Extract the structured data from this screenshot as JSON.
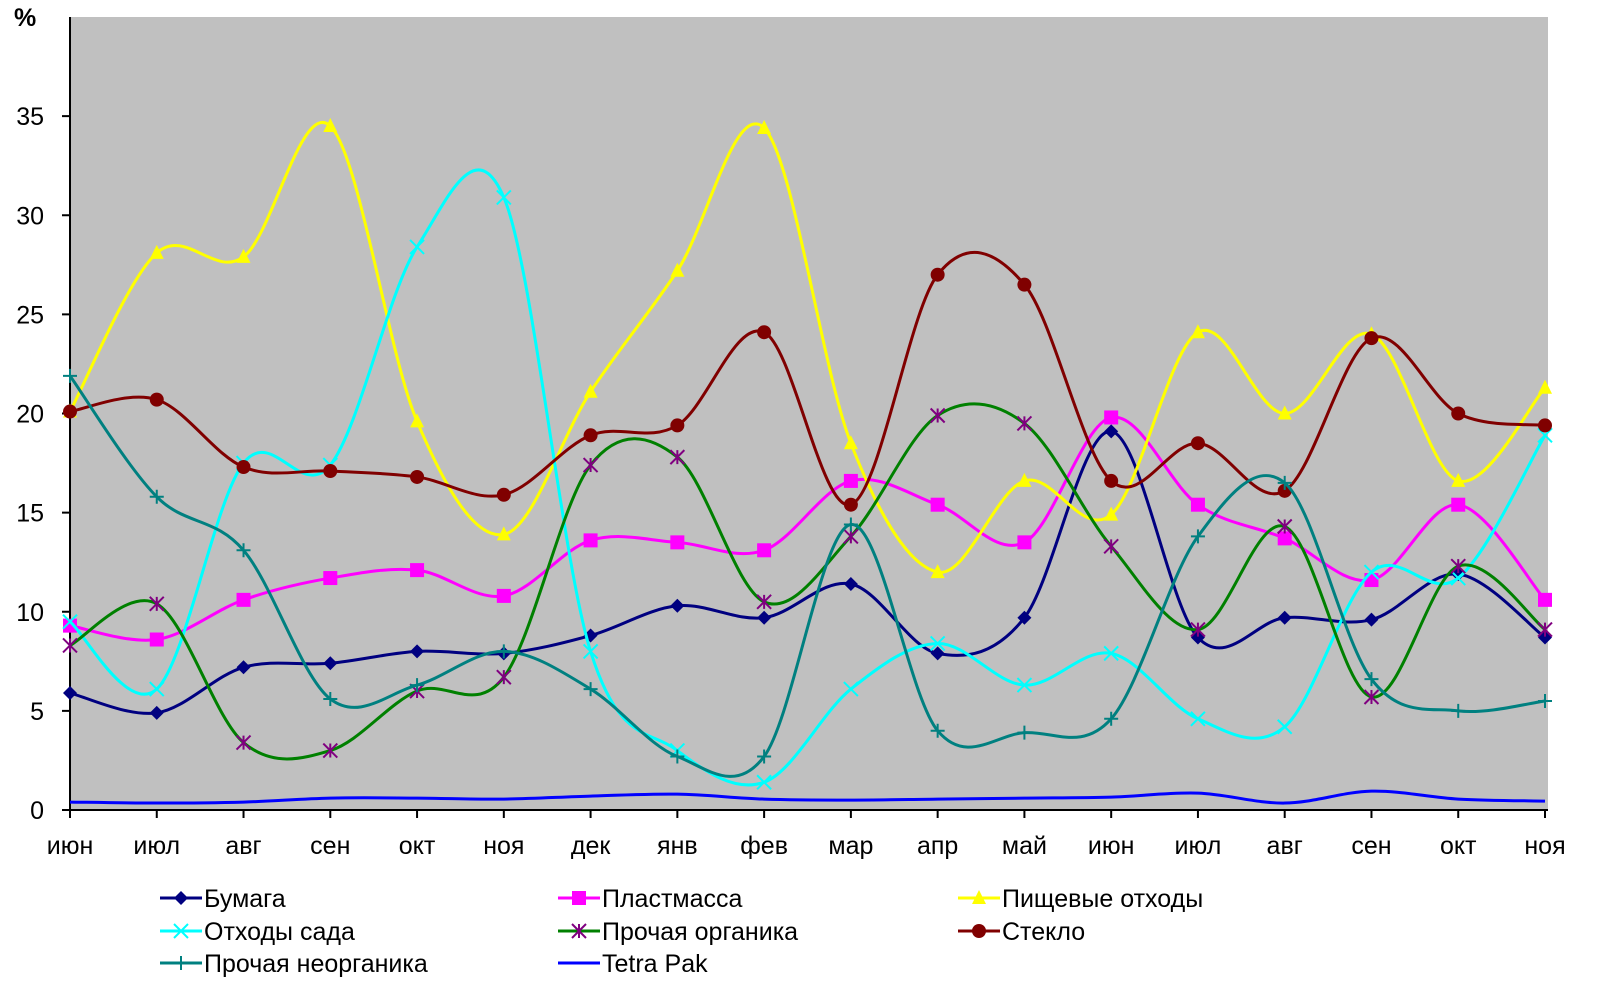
{
  "chart_data": {
    "type": "line",
    "y_label": "%",
    "categories": [
      "июн",
      "июл",
      "авг",
      "сен",
      "окт",
      "ноя",
      "дек",
      "янв",
      "фев",
      "мар",
      "апр",
      "май",
      "июн",
      "июл",
      "авг",
      "сен",
      "окт",
      "ноя"
    ],
    "ylim": [
      0,
      40
    ],
    "yticks": [
      0,
      5,
      10,
      15,
      20,
      25,
      30,
      35
    ],
    "smooth": true,
    "plot_background": "#c0c0c0",
    "series": [
      {
        "name": "Бумага",
        "color": "#000080",
        "marker": "diamond",
        "values": [
          5.9,
          4.9,
          7.2,
          7.4,
          8.0,
          7.9,
          8.8,
          10.3,
          9.7,
          11.4,
          7.9,
          9.7,
          19.1,
          8.7,
          9.7,
          9.6,
          11.9,
          8.7
        ]
      },
      {
        "name": "Пластмасса",
        "color": "#ff00ff",
        "marker": "square",
        "values": [
          9.3,
          8.6,
          10.6,
          11.7,
          12.1,
          10.8,
          13.6,
          13.5,
          13.1,
          16.6,
          15.4,
          13.5,
          19.8,
          15.4,
          13.7,
          11.6,
          15.4,
          10.6
        ]
      },
      {
        "name": "Пищевые отходы",
        "color": "#ffff00",
        "marker": "triangle",
        "values": [
          20.1,
          28.1,
          27.9,
          34.5,
          19.6,
          13.9,
          21.1,
          27.2,
          34.4,
          18.5,
          12.0,
          16.6,
          14.9,
          24.1,
          20.0,
          24.0,
          16.6,
          21.3
        ]
      },
      {
        "name": "Отходы сада",
        "color": "#00ffff",
        "marker": "x",
        "values": [
          9.5,
          6.1,
          17.5,
          17.4,
          28.4,
          30.9,
          8.0,
          3.0,
          1.4,
          6.1,
          8.4,
          6.3,
          7.9,
          4.6,
          4.2,
          12.0,
          11.7,
          18.9
        ]
      },
      {
        "name": "Прочая органика",
        "color": "#008000",
        "marker": "star",
        "marker_color": "#800080",
        "values": [
          8.3,
          10.4,
          3.4,
          3.0,
          6.0,
          6.7,
          17.4,
          17.8,
          10.5,
          13.8,
          19.9,
          19.5,
          13.3,
          9.1,
          14.3,
          5.7,
          12.3,
          9.1
        ]
      },
      {
        "name": "Стекло",
        "color": "#800000",
        "marker": "circle",
        "values": [
          20.1,
          20.7,
          17.3,
          17.1,
          16.8,
          15.9,
          18.9,
          19.4,
          24.1,
          15.4,
          27.0,
          26.5,
          16.6,
          18.5,
          16.1,
          23.8,
          20.0,
          19.4
        ]
      },
      {
        "name": "Прочая неорганика",
        "color": "#008080",
        "marker": "plus",
        "values": [
          21.9,
          15.8,
          13.1,
          5.6,
          6.3,
          8.0,
          6.1,
          2.7,
          2.7,
          14.4,
          4.0,
          3.9,
          4.6,
          13.8,
          16.5,
          6.6,
          5.0,
          5.5
        ]
      },
      {
        "name": "Tetra Pak",
        "color": "#0000ff",
        "marker": "none",
        "values": [
          0.4,
          0.35,
          0.4,
          0.6,
          0.6,
          0.55,
          0.7,
          0.8,
          0.55,
          0.5,
          0.55,
          0.6,
          0.65,
          0.85,
          0.35,
          0.95,
          0.55,
          0.45
        ]
      }
    ]
  }
}
